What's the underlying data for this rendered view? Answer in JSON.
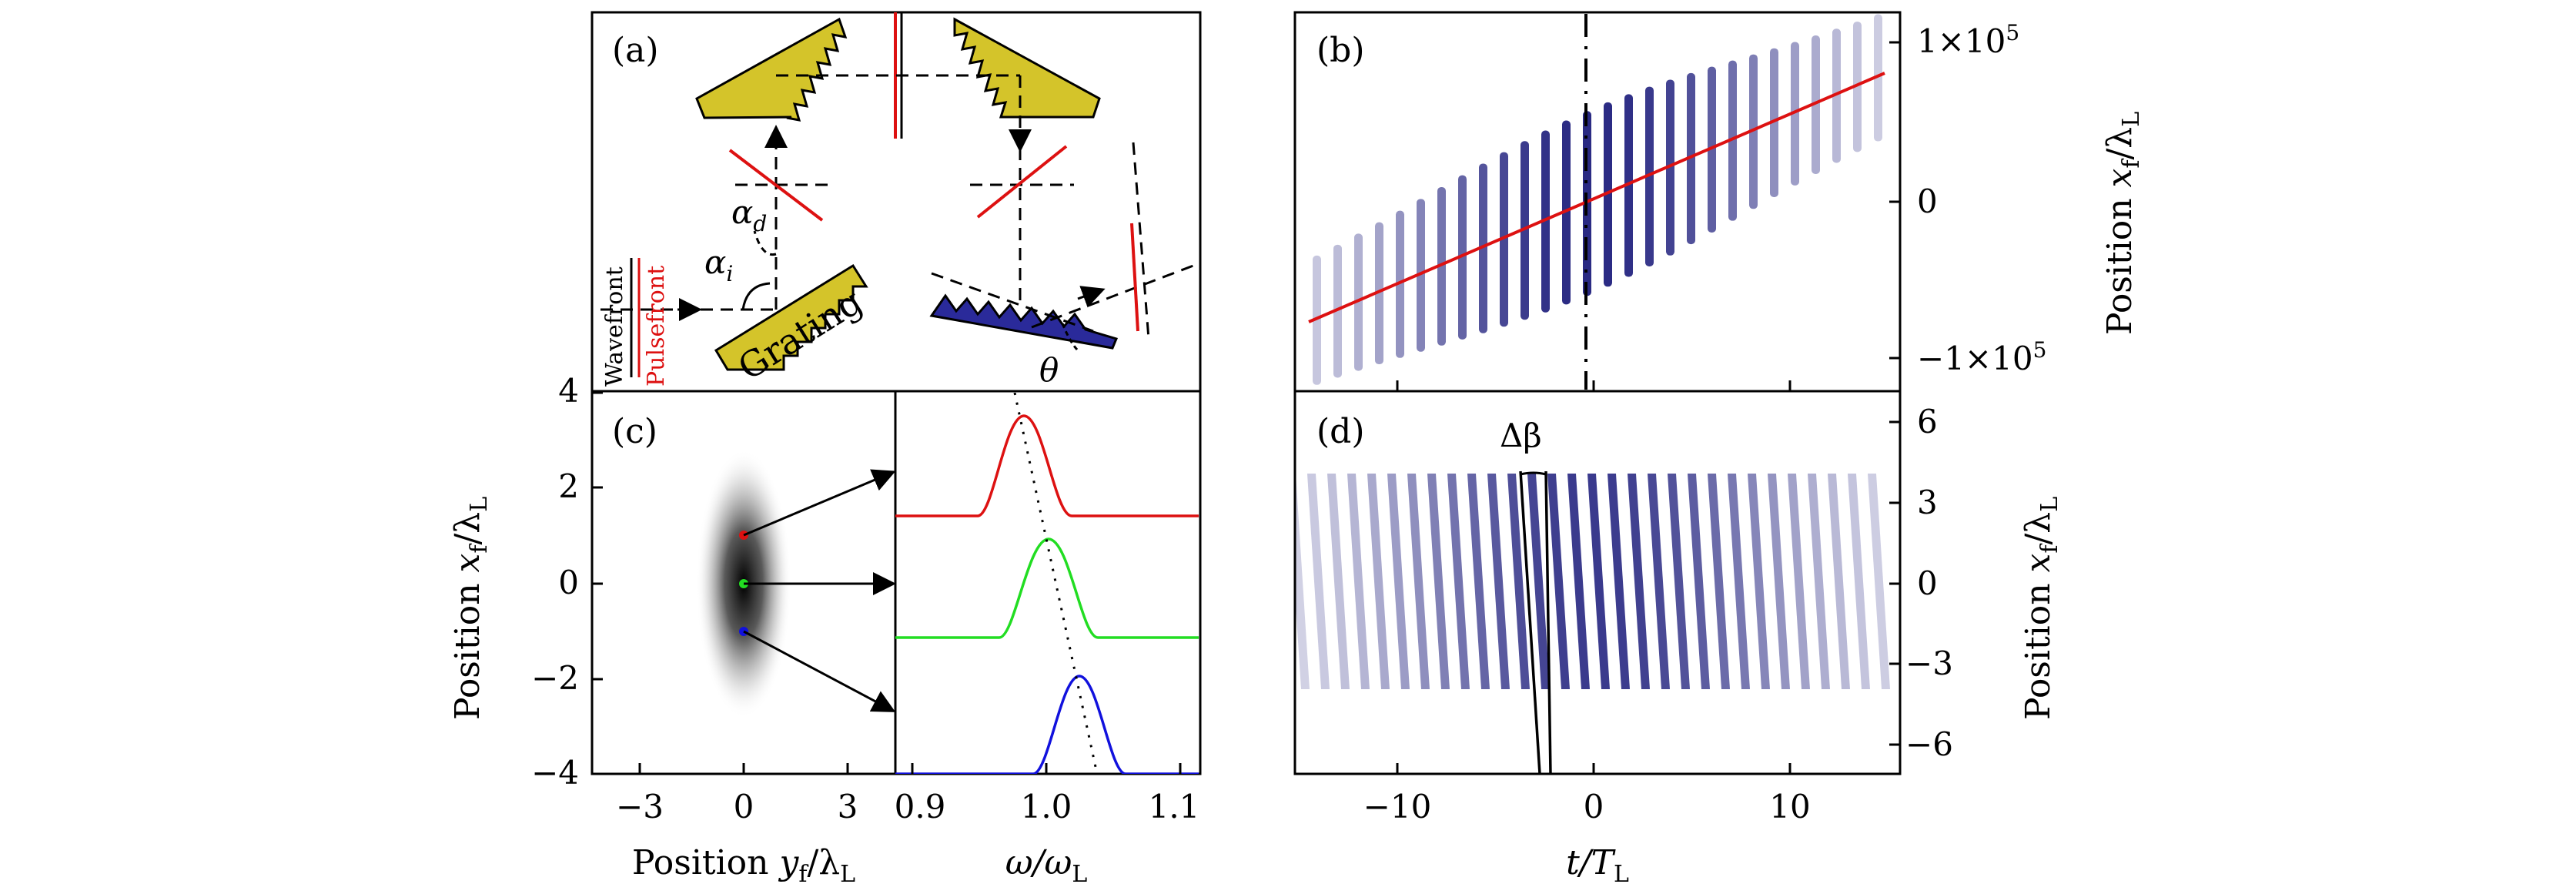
{
  "panels": {
    "a": {
      "label": "(a)",
      "labels": {
        "alpha_d": "α",
        "alpha_d_sub": "d",
        "alpha_i": "α",
        "alpha_i_sub": "i",
        "grating": "Grating",
        "theta": "θ",
        "wavefront": "Wavefront",
        "pulsefront": "Pulsefront"
      }
    },
    "b": {
      "label": "(b)",
      "y_ticks": [
        "1×10",
        "0",
        "−1×10"
      ],
      "y_tick_exp": "5",
      "y_axis_label": "Position ",
      "y_axis_var": "x",
      "y_axis_var_sub": "f",
      "y_axis_slash": "/λ",
      "y_axis_slash_sub": "L"
    },
    "c": {
      "label": "(c)",
      "y_ticks": [
        "4",
        "2",
        "0",
        "−2",
        "−4"
      ],
      "x_ticks": [
        "−3",
        "0",
        "3"
      ],
      "x_axis_label": "Position ",
      "x_axis_var": "y",
      "x_axis_var_sub": "f",
      "x_axis_slash": "/λ",
      "x_axis_slash_sub": "L",
      "y_axis_label": "Position ",
      "y_axis_var": "x",
      "y_axis_var_sub": "f",
      "y_axis_slash": "/λ",
      "y_axis_slash_sub": "L"
    },
    "c2": {
      "x_ticks": [
        "0.9",
        "1.0",
        "1.1"
      ],
      "x_axis_label": "ω/ω",
      "x_axis_label_sub": "L"
    },
    "d": {
      "label": "(d)",
      "delta_beta": "Δβ",
      "y_ticks": [
        "6",
        "3",
        "0",
        "−3",
        "−6"
      ],
      "x_ticks": [
        "−10",
        "0",
        "10"
      ],
      "x_axis_var": "t",
      "x_axis_slash": "/T",
      "x_axis_slash_sub": "L",
      "y_axis_label": "Position ",
      "y_axis_var": "x",
      "y_axis_var_sub": "f",
      "y_axis_slash": "/λ",
      "y_axis_slash_sub": "L"
    }
  },
  "colors": {
    "grating_yellow": "#d4c42a",
    "grating_blue": "#2a2a9a",
    "ray_red": "#dd1111",
    "fringe_blue": "#1a1a7a",
    "spectrum_red": "#dd1111",
    "spectrum_green": "#22dd22",
    "spectrum_blue": "#1111dd"
  }
}
